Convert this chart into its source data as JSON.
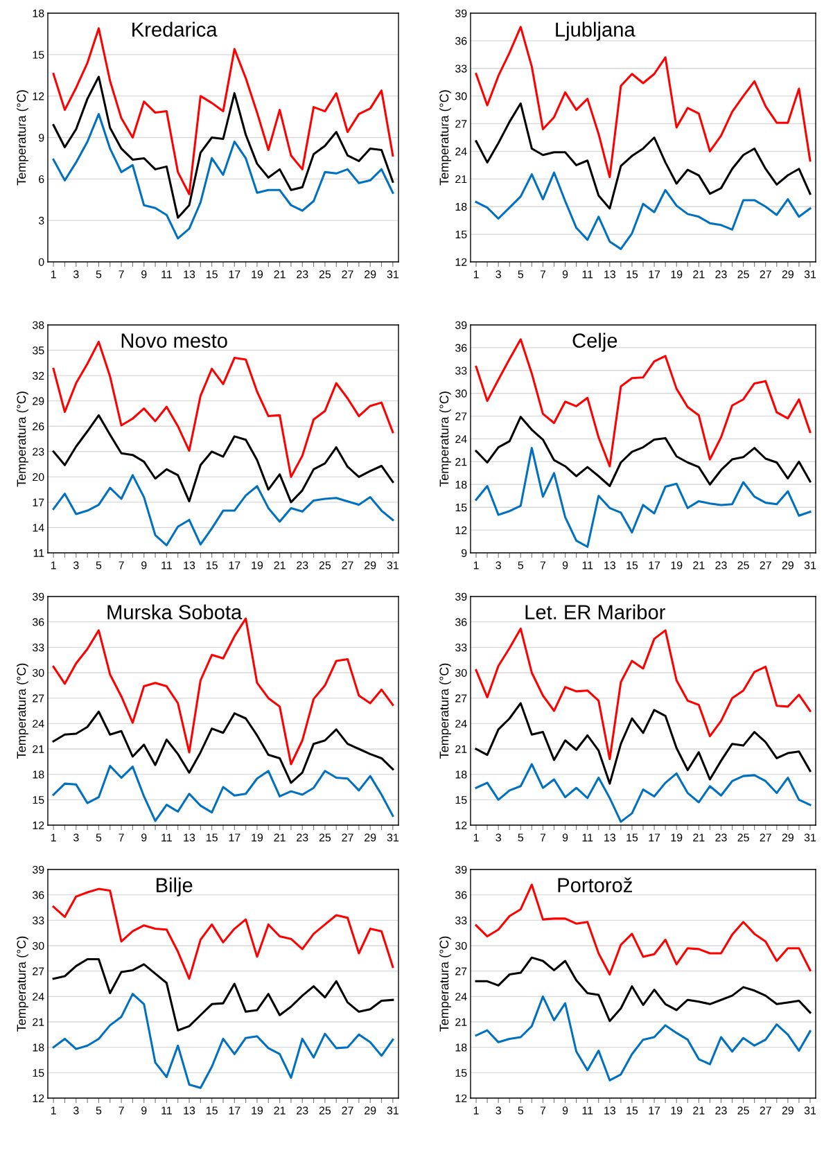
{
  "chart_data": [
    {
      "type": "line",
      "title": "Kredarica",
      "ylabel": "Temperatura (°C)",
      "grid": "y",
      "categories": [
        "1",
        null,
        "3",
        null,
        "5",
        null,
        "7",
        null,
        "9",
        null,
        "11",
        null,
        "13",
        null,
        "15",
        null,
        "17",
        null,
        "19",
        null,
        "21",
        null,
        "23",
        null,
        "25",
        null,
        "27",
        null,
        "29",
        null,
        "31"
      ],
      "ylim": [
        0,
        18
      ],
      "yticks": [
        0,
        3,
        6,
        9,
        12,
        15,
        18
      ],
      "series": [
        {
          "color": "#ff0000",
          "values": [
            13.6,
            11.0,
            12.6,
            14.4,
            16.9,
            13.1,
            10.4,
            9.0,
            11.6,
            10.8,
            10.9,
            6.5,
            4.9,
            12.0,
            11.5,
            10.9,
            15.4,
            13.3,
            10.8,
            8.1,
            11.0,
            7.7,
            6.7,
            11.2,
            10.9,
            12.2,
            9.4,
            10.7,
            11.1,
            12.4,
            7.7
          ]
        },
        {
          "color": "#000000",
          "values": [
            9.9,
            8.3,
            9.6,
            11.8,
            13.4,
            9.7,
            8.2,
            7.4,
            7.5,
            6.7,
            6.9,
            3.2,
            4.1,
            7.9,
            9.0,
            8.9,
            12.2,
            9.2,
            7.1,
            6.1,
            6.7,
            5.2,
            5.4,
            7.8,
            8.4,
            9.4,
            7.7,
            7.3,
            8.2,
            8.1,
            5.8
          ]
        },
        {
          "color": "#0070c0",
          "values": [
            7.4,
            5.9,
            7.2,
            8.7,
            10.7,
            8.2,
            6.5,
            7.0,
            4.1,
            3.9,
            3.4,
            1.7,
            2.4,
            4.3,
            7.5,
            6.3,
            8.7,
            7.5,
            5.0,
            5.2,
            5.2,
            4.1,
            3.7,
            4.4,
            6.5,
            6.4,
            6.7,
            5.7,
            5.9,
            6.7,
            5.0
          ]
        }
      ]
    },
    {
      "type": "line",
      "title": "Ljubljana",
      "ylabel": "Temperatura (°C)",
      "grid": "y",
      "categories": [
        "1",
        null,
        "3",
        null,
        "5",
        null,
        "7",
        null,
        "9",
        null,
        "11",
        null,
        "13",
        null,
        "15",
        null,
        "17",
        null,
        "19",
        null,
        "21",
        null,
        "23",
        null,
        "25",
        null,
        "27",
        null,
        "29",
        null,
        "31"
      ],
      "ylim": [
        12,
        39
      ],
      "yticks": [
        12,
        15,
        18,
        21,
        24,
        27,
        30,
        33,
        36,
        39
      ],
      "series": [
        {
          "color": "#ff0000",
          "values": [
            32.4,
            29.0,
            32.2,
            34.7,
            37.5,
            33.2,
            26.4,
            27.7,
            30.4,
            28.5,
            29.7,
            25.9,
            21.2,
            31.1,
            32.4,
            31.4,
            32.4,
            34.2,
            26.6,
            28.7,
            28.1,
            24.0,
            25.7,
            28.3,
            30.0,
            31.6,
            28.9,
            27.1,
            27.1,
            30.8,
            23.0
          ]
        },
        {
          "color": "#000000",
          "values": [
            25.1,
            22.8,
            24.9,
            27.2,
            29.2,
            24.3,
            23.6,
            23.9,
            23.9,
            22.5,
            23.0,
            19.2,
            17.8,
            22.4,
            23.5,
            24.3,
            25.5,
            22.8,
            20.5,
            22.0,
            21.4,
            19.4,
            20.0,
            22.1,
            23.6,
            24.3,
            22.1,
            20.4,
            21.4,
            22.1,
            19.4
          ]
        },
        {
          "color": "#0070c0",
          "values": [
            18.5,
            17.9,
            16.7,
            17.9,
            19.1,
            21.5,
            18.8,
            21.7,
            18.6,
            15.7,
            14.4,
            16.9,
            14.2,
            13.4,
            15.1,
            18.3,
            17.4,
            19.8,
            18.1,
            17.2,
            16.9,
            16.2,
            16.0,
            15.5,
            18.7,
            18.7,
            18.0,
            17.1,
            18.8,
            16.9,
            17.8
          ]
        }
      ]
    },
    {
      "type": "line",
      "title": "Novo mesto",
      "ylabel": "Temperatura (°C)",
      "grid": "y",
      "categories": [
        "1",
        null,
        "3",
        null,
        "5",
        null,
        "7",
        null,
        "9",
        null,
        "11",
        null,
        "13",
        null,
        "15",
        null,
        "17",
        null,
        "19",
        null,
        "21",
        null,
        "23",
        null,
        "25",
        null,
        "27",
        null,
        "29",
        null,
        "31"
      ],
      "ylim": [
        11,
        38
      ],
      "yticks": [
        11,
        14,
        17,
        20,
        23,
        26,
        29,
        32,
        35,
        38
      ],
      "series": [
        {
          "color": "#ff0000",
          "values": [
            32.8,
            27.7,
            31.1,
            33.4,
            36.0,
            31.9,
            26.1,
            26.9,
            28.1,
            26.6,
            28.3,
            26.0,
            23.1,
            29.6,
            32.8,
            31.0,
            34.1,
            33.9,
            30.1,
            27.2,
            27.3,
            20.0,
            22.5,
            26.8,
            27.8,
            31.1,
            29.3,
            27.2,
            28.4,
            28.8,
            25.3
          ]
        },
        {
          "color": "#000000",
          "values": [
            23.0,
            21.4,
            23.6,
            25.4,
            27.3,
            25.0,
            22.8,
            22.6,
            21.8,
            19.8,
            20.9,
            20.2,
            17.1,
            21.4,
            23.0,
            22.4,
            24.8,
            24.4,
            22.0,
            18.5,
            20.3,
            17.0,
            18.4,
            20.9,
            21.6,
            23.5,
            21.2,
            20.0,
            20.7,
            21.3,
            19.4
          ]
        },
        {
          "color": "#0070c0",
          "values": [
            16.2,
            18.0,
            15.6,
            16.0,
            16.7,
            18.7,
            17.4,
            20.2,
            17.6,
            13.1,
            11.9,
            14.1,
            14.9,
            12.0,
            13.9,
            16.0,
            16.0,
            17.8,
            18.9,
            16.3,
            14.7,
            16.3,
            15.9,
            17.2,
            17.4,
            17.5,
            17.1,
            16.7,
            17.6,
            16.0,
            14.9
          ]
        }
      ]
    },
    {
      "type": "line",
      "title": "Celje",
      "ylabel": "Temperatura (°C)",
      "grid": "y",
      "categories": [
        "1",
        null,
        "3",
        null,
        "5",
        null,
        "7",
        null,
        "9",
        null,
        "11",
        null,
        "13",
        null,
        "15",
        null,
        "17",
        null,
        "19",
        null,
        "21",
        null,
        "23",
        null,
        "25",
        null,
        "27",
        null,
        "29",
        null,
        "31"
      ],
      "ylim": [
        9,
        39
      ],
      "yticks": [
        9,
        12,
        15,
        18,
        21,
        24,
        27,
        30,
        33,
        36,
        39
      ],
      "series": [
        {
          "color": "#ff0000",
          "values": [
            33.5,
            29.0,
            31.8,
            34.5,
            37.1,
            32.6,
            27.3,
            26.1,
            28.9,
            28.3,
            29.4,
            24.2,
            20.4,
            30.9,
            32.0,
            32.1,
            34.2,
            34.9,
            30.6,
            28.2,
            27.1,
            21.3,
            24.2,
            28.4,
            29.2,
            31.3,
            31.6,
            27.5,
            26.7,
            29.2,
            24.9
          ]
        },
        {
          "color": "#000000",
          "values": [
            22.4,
            20.9,
            22.9,
            23.7,
            26.9,
            25.2,
            23.9,
            21.2,
            20.4,
            19.1,
            20.3,
            19.1,
            17.8,
            20.9,
            22.3,
            22.9,
            23.9,
            24.1,
            21.7,
            20.9,
            20.3,
            18.0,
            19.9,
            21.3,
            21.6,
            22.8,
            21.4,
            20.9,
            18.8,
            21.0,
            18.4
          ]
        },
        {
          "color": "#0070c0",
          "values": [
            16.0,
            17.8,
            14.0,
            14.5,
            15.2,
            22.8,
            16.4,
            19.5,
            13.7,
            10.6,
            9.8,
            16.5,
            14.9,
            14.3,
            11.7,
            15.3,
            14.2,
            17.7,
            18.1,
            14.9,
            15.8,
            15.5,
            15.3,
            15.4,
            18.3,
            16.4,
            15.6,
            15.4,
            17.1,
            13.9,
            14.4
          ]
        }
      ]
    },
    {
      "type": "line",
      "title": "Murska Sobota",
      "ylabel": "Temperatura (°C)",
      "grid": "y",
      "categories": [
        "1",
        null,
        "3",
        null,
        "5",
        null,
        "7",
        null,
        "9",
        null,
        "11",
        null,
        "13",
        null,
        "15",
        null,
        "17",
        null,
        "19",
        null,
        "21",
        null,
        "23",
        null,
        "25",
        null,
        "27",
        null,
        "29",
        null,
        "31"
      ],
      "ylim": [
        12,
        39
      ],
      "yticks": [
        12,
        15,
        18,
        21,
        24,
        27,
        30,
        33,
        36,
        39
      ],
      "series": [
        {
          "color": "#ff0000",
          "values": [
            30.7,
            28.7,
            31.1,
            32.8,
            35.0,
            29.8,
            27.2,
            24.1,
            28.4,
            28.8,
            28.4,
            26.4,
            20.6,
            29.1,
            32.1,
            31.7,
            34.3,
            36.4,
            28.8,
            27.0,
            26.0,
            19.2,
            22.0,
            26.9,
            28.5,
            31.4,
            31.6,
            27.3,
            26.4,
            28.0,
            26.2
          ]
        },
        {
          "color": "#000000",
          "values": [
            21.9,
            22.7,
            22.8,
            23.6,
            25.4,
            22.7,
            23.1,
            20.1,
            21.5,
            19.1,
            22.1,
            20.4,
            18.2,
            20.6,
            23.4,
            22.9,
            25.2,
            24.6,
            22.6,
            20.3,
            19.9,
            17.0,
            18.2,
            21.6,
            22.0,
            23.3,
            21.6,
            21.0,
            20.4,
            19.9,
            18.6
          ]
        },
        {
          "color": "#0070c0",
          "values": [
            15.6,
            16.9,
            16.8,
            14.6,
            15.3,
            19.0,
            17.6,
            18.9,
            15.4,
            12.5,
            14.4,
            13.6,
            15.7,
            14.3,
            13.5,
            16.5,
            15.5,
            15.7,
            17.5,
            18.4,
            15.4,
            16.0,
            15.6,
            16.4,
            18.4,
            17.6,
            17.5,
            16.1,
            17.8,
            15.6,
            13.1
          ]
        }
      ]
    },
    {
      "type": "line",
      "title": "Let. ER Maribor",
      "ylabel": "Temperatura (°C)",
      "grid": "y",
      "categories": [
        "1",
        null,
        "3",
        null,
        "5",
        null,
        "7",
        null,
        "9",
        null,
        "11",
        null,
        "13",
        null,
        "15",
        null,
        "17",
        null,
        "19",
        null,
        "21",
        null,
        "23",
        null,
        "25",
        null,
        "27",
        null,
        "29",
        null,
        "31"
      ],
      "ylim": [
        12,
        39
      ],
      "yticks": [
        12,
        15,
        18,
        21,
        24,
        27,
        30,
        33,
        36,
        39
      ],
      "series": [
        {
          "color": "#ff0000",
          "values": [
            30.3,
            27.1,
            30.8,
            32.9,
            35.2,
            30.0,
            27.3,
            25.5,
            28.3,
            27.8,
            27.9,
            26.7,
            19.8,
            28.9,
            31.4,
            30.5,
            34.0,
            35.0,
            29.1,
            26.7,
            26.2,
            22.5,
            24.3,
            27.0,
            27.9,
            30.1,
            30.7,
            26.1,
            26.0,
            27.4,
            25.5
          ]
        },
        {
          "color": "#000000",
          "values": [
            21.0,
            20.3,
            23.3,
            24.6,
            26.4,
            22.7,
            23.0,
            19.7,
            22.0,
            20.9,
            22.6,
            20.8,
            16.9,
            21.6,
            24.6,
            22.9,
            25.6,
            24.9,
            21.1,
            18.5,
            20.6,
            17.4,
            19.6,
            21.6,
            21.4,
            23.0,
            21.8,
            19.9,
            20.5,
            20.7,
            18.4
          ]
        },
        {
          "color": "#0070c0",
          "values": [
            16.4,
            17.0,
            15.0,
            16.1,
            16.6,
            19.2,
            16.4,
            17.4,
            15.3,
            16.4,
            15.2,
            17.6,
            15.2,
            12.4,
            13.4,
            16.2,
            15.4,
            17.0,
            18.1,
            15.8,
            14.7,
            16.6,
            15.5,
            17.2,
            17.8,
            17.9,
            17.2,
            15.8,
            17.6,
            15.0,
            14.4
          ]
        }
      ]
    },
    {
      "type": "line",
      "title": "Bilje",
      "ylabel": "Temperatura (°C)",
      "grid": "y",
      "categories": [
        "1",
        null,
        "3",
        null,
        "5",
        null,
        "7",
        null,
        "9",
        null,
        "11",
        null,
        "13",
        null,
        "15",
        null,
        "17",
        null,
        "19",
        null,
        "21",
        null,
        "23",
        null,
        "25",
        null,
        "27",
        null,
        "29",
        null,
        "31"
      ],
      "ylim": [
        12,
        39
      ],
      "yticks": [
        12,
        15,
        18,
        21,
        24,
        27,
        30,
        33,
        36,
        39
      ],
      "series": [
        {
          "color": "#ff0000",
          "values": [
            34.6,
            33.4,
            35.8,
            36.3,
            36.7,
            36.5,
            30.5,
            31.7,
            32.4,
            32.0,
            31.9,
            29.3,
            26.1,
            30.7,
            32.5,
            30.4,
            32.0,
            33.1,
            28.7,
            32.5,
            31.1,
            30.8,
            29.6,
            31.4,
            32.5,
            33.6,
            33.3,
            29.1,
            32.0,
            31.7,
            27.5
          ]
        },
        {
          "color": "#000000",
          "values": [
            26.1,
            26.4,
            27.6,
            28.4,
            28.4,
            24.4,
            26.9,
            27.1,
            27.8,
            26.7,
            25.6,
            20.0,
            20.5,
            21.8,
            23.1,
            23.2,
            25.5,
            22.2,
            22.4,
            24.3,
            21.8,
            22.8,
            24.1,
            25.2,
            23.9,
            25.8,
            23.3,
            22.2,
            22.5,
            23.5,
            23.6
          ]
        },
        {
          "color": "#0070c0",
          "values": [
            18.0,
            19.0,
            17.8,
            18.2,
            19.0,
            20.6,
            21.6,
            24.3,
            23.1,
            16.2,
            14.5,
            18.2,
            13.6,
            13.2,
            15.7,
            19.0,
            17.2,
            19.1,
            19.3,
            17.9,
            17.2,
            14.4,
            19.0,
            16.8,
            19.6,
            17.9,
            18.0,
            19.5,
            18.6,
            17.0,
            18.9
          ]
        }
      ]
    },
    {
      "type": "line",
      "title": "Portorož",
      "ylabel": "Temperatura (°C)",
      "grid": "y",
      "categories": [
        "1",
        null,
        "3",
        null,
        "5",
        null,
        "7",
        null,
        "9",
        null,
        "11",
        null,
        "13",
        null,
        "15",
        null,
        "17",
        null,
        "19",
        null,
        "21",
        null,
        "23",
        null,
        "25",
        null,
        "27",
        null,
        "29",
        null,
        "31"
      ],
      "ylim": [
        12,
        39
      ],
      "yticks": [
        12,
        15,
        18,
        21,
        24,
        27,
        30,
        33,
        36,
        39
      ],
      "series": [
        {
          "color": "#ff0000",
          "values": [
            32.4,
            31.1,
            31.9,
            33.5,
            34.3,
            37.2,
            33.1,
            33.2,
            33.2,
            32.6,
            32.8,
            29.1,
            26.6,
            30.1,
            31.4,
            28.7,
            29.0,
            30.7,
            27.8,
            29.7,
            29.6,
            29.1,
            29.1,
            31.3,
            32.8,
            31.4,
            30.5,
            28.2,
            29.7,
            29.7,
            27.1
          ]
        },
        {
          "color": "#000000",
          "values": [
            25.8,
            25.8,
            25.3,
            26.6,
            26.8,
            28.6,
            28.2,
            27.1,
            28.2,
            25.9,
            24.4,
            24.2,
            21.1,
            22.6,
            25.2,
            23.0,
            24.8,
            23.1,
            22.4,
            23.6,
            23.4,
            23.1,
            23.6,
            24.1,
            25.1,
            24.7,
            24.1,
            23.1,
            23.3,
            23.5,
            22.1
          ]
        },
        {
          "color": "#0070c0",
          "values": [
            19.4,
            20.0,
            18.6,
            19.0,
            19.2,
            20.5,
            24.0,
            21.2,
            23.2,
            17.5,
            15.3,
            17.6,
            14.1,
            14.8,
            17.2,
            18.9,
            19.2,
            20.6,
            19.7,
            18.9,
            16.6,
            16.0,
            19.2,
            17.5,
            19.1,
            18.2,
            18.9,
            20.7,
            19.5,
            17.6,
            19.9
          ]
        }
      ]
    }
  ]
}
